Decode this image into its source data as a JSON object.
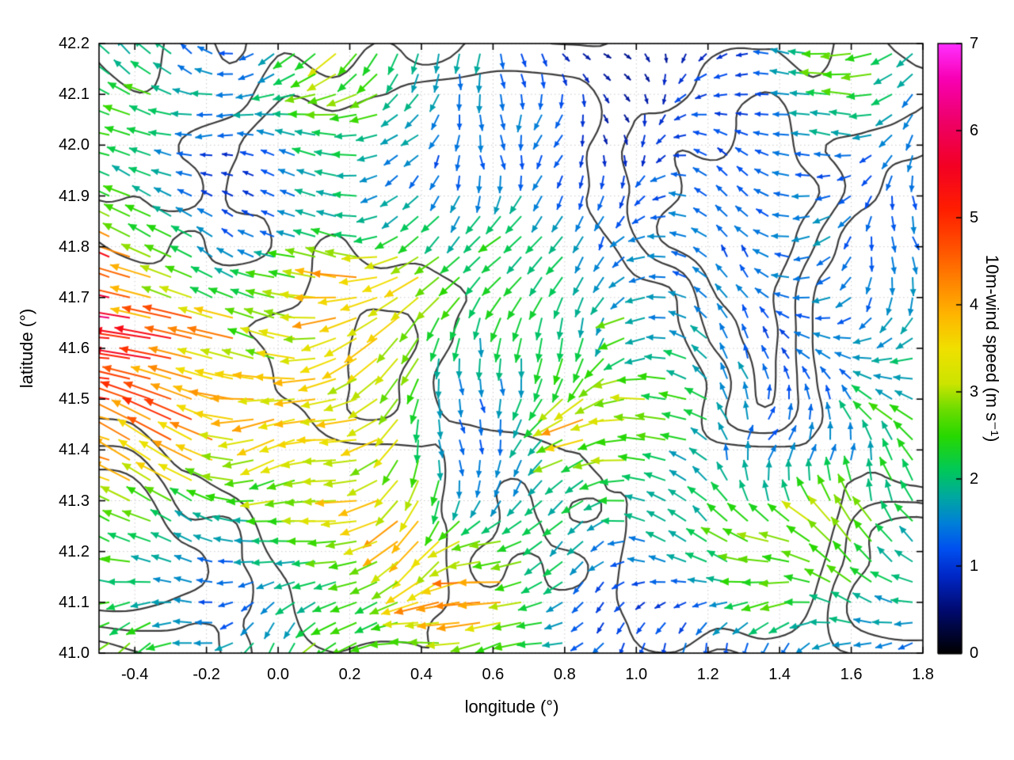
{
  "figure": {
    "background": "#ffffff"
  },
  "chart_data": {
    "type": "quiver",
    "title": "",
    "xlabel": "longitude (°)",
    "ylabel": "latitude (°)",
    "xlim": [
      -0.5,
      1.8
    ],
    "ylim": [
      41.0,
      42.2
    ],
    "xticks": [
      "-0.4",
      "-0.2",
      "0.0",
      "0.2",
      "0.4",
      "0.6",
      "0.8",
      "1.0",
      "1.2",
      "1.4",
      "1.6",
      "1.8"
    ],
    "yticks": [
      "41.0",
      "41.1",
      "41.2",
      "41.3",
      "41.4",
      "41.5",
      "41.6",
      "41.7",
      "41.8",
      "41.9",
      "42.0",
      "42.1",
      "42.2"
    ],
    "grid": "dotted",
    "grid_color": "#c8c8c8",
    "contour_color": "#3c3c3c",
    "contour_levels": [
      0.46,
      0.56,
      0.66
    ],
    "colorbar": {
      "label": "10m-wind speed (m s⁻¹)",
      "min": 0,
      "max": 7,
      "ticks": [
        0,
        1,
        2,
        3,
        4,
        5,
        6,
        7
      ],
      "palette": [
        [
          0.0,
          "#000000"
        ],
        [
          0.5,
          "#000a70"
        ],
        [
          0.9,
          "#0028c8"
        ],
        [
          1.2,
          "#0050f0"
        ],
        [
          1.5,
          "#0080d8"
        ],
        [
          1.8,
          "#00a8a0"
        ],
        [
          2.1,
          "#00c85a"
        ],
        [
          2.5,
          "#28d800"
        ],
        [
          2.8,
          "#6cdc00"
        ],
        [
          3.1,
          "#cce400"
        ],
        [
          3.5,
          "#f0e000"
        ],
        [
          3.9,
          "#ffb400"
        ],
        [
          4.3,
          "#ff8000"
        ],
        [
          4.7,
          "#ff4c00"
        ],
        [
          5.1,
          "#ff1e00"
        ],
        [
          5.6,
          "#f30024"
        ],
        [
          6.1,
          "#ee0066"
        ],
        [
          6.6,
          "#f800b4"
        ],
        [
          7.0,
          "#ff30ff"
        ]
      ]
    },
    "wind_field": {
      "description": "10 m wind vectors on a regular lon/lat grid, color and length proportional to speed, predominantly blowing toward the west; terrain contour lines overlaid",
      "grid_cols": 40,
      "grid_rows": 30,
      "base_direction_deg": 180,
      "seed": 7,
      "speed_matrix_lons": [
        -0.5,
        -0.291,
        -0.082,
        0.127,
        0.336,
        0.545,
        0.755,
        0.964,
        1.173,
        1.382,
        1.591,
        1.8
      ],
      "speed_matrix_lats": [
        42.2,
        42.08,
        41.96,
        41.84,
        41.72,
        41.6,
        41.48,
        41.36,
        41.24,
        41.12,
        41.0
      ],
      "speed_matrix": [
        [
          2.2,
          2.5,
          2.0,
          2.5,
          1.5,
          1.8,
          1.2,
          1.5,
          1.2,
          1.5,
          2.0,
          1.2
        ],
        [
          2.5,
          3.0,
          2.8,
          2.0,
          1.8,
          1.5,
          2.0,
          1.5,
          1.8,
          1.5,
          1.8,
          1.0
        ],
        [
          1.5,
          1.8,
          1.2,
          1.5,
          1.0,
          1.2,
          1.5,
          1.8,
          2.2,
          1.8,
          1.0,
          1.2
        ],
        [
          1.8,
          2.2,
          1.5,
          1.2,
          1.5,
          2.0,
          2.5,
          2.2,
          3.0,
          2.5,
          1.5,
          1.2
        ],
        [
          4.0,
          3.0,
          2.5,
          2.8,
          3.0,
          2.5,
          2.8,
          2.5,
          2.2,
          2.0,
          1.5,
          1.5
        ],
        [
          5.5,
          4.5,
          3.0,
          2.5,
          2.5,
          2.5,
          2.8,
          2.5,
          2.0,
          1.2,
          1.5,
          1.8
        ],
        [
          5.0,
          4.5,
          3.5,
          2.8,
          2.5,
          2.2,
          3.0,
          3.5,
          2.0,
          1.0,
          1.5,
          2.0
        ],
        [
          4.2,
          3.8,
          3.0,
          2.5,
          2.8,
          2.0,
          2.5,
          3.0,
          1.5,
          1.2,
          1.8,
          2.2
        ],
        [
          2.5,
          2.5,
          3.0,
          3.5,
          4.5,
          2.5,
          2.5,
          2.2,
          2.0,
          2.5,
          3.0,
          1.5
        ],
        [
          2.0,
          2.5,
          3.0,
          3.5,
          4.0,
          4.0,
          2.5,
          1.5,
          1.2,
          2.5,
          2.0,
          1.5
        ],
        [
          2.5,
          3.0,
          3.5,
          4.0,
          3.5,
          3.0,
          2.0,
          1.5,
          1.2,
          1.0,
          1.5,
          1.2
        ]
      ]
    }
  }
}
